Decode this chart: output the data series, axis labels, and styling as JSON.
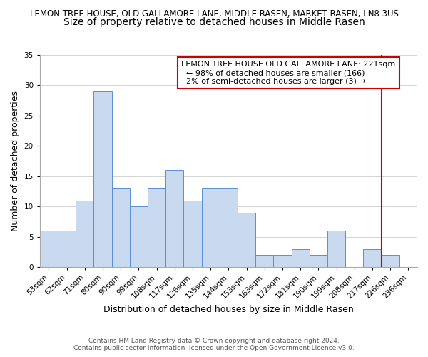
{
  "title_line1": "LEMON TREE HOUSE, OLD GALLAMORE LANE, MIDDLE RASEN, MARKET RASEN, LN8 3US",
  "title_line2": "Size of property relative to detached houses in Middle Rasen",
  "xlabel": "Distribution of detached houses by size in Middle Rasen",
  "ylabel": "Number of detached properties",
  "bin_labels": [
    "53sqm",
    "62sqm",
    "71sqm",
    "80sqm",
    "90sqm",
    "99sqm",
    "108sqm",
    "117sqm",
    "126sqm",
    "135sqm",
    "144sqm",
    "153sqm",
    "163sqm",
    "172sqm",
    "181sqm",
    "190sqm",
    "199sqm",
    "208sqm",
    "217sqm",
    "226sqm",
    "236sqm"
  ],
  "bar_heights": [
    6,
    6,
    11,
    29,
    13,
    10,
    13,
    16,
    11,
    13,
    13,
    9,
    2,
    2,
    3,
    2,
    6,
    0,
    3,
    2,
    0
  ],
  "bar_color": "#c9d9f0",
  "bar_edge_color": "#5b8fd4",
  "vline_x": 18.5,
  "vline_color": "#cc0000",
  "ylim": [
    0,
    35
  ],
  "yticks": [
    0,
    5,
    10,
    15,
    20,
    25,
    30,
    35
  ],
  "annotation_title": "LEMON TREE HOUSE OLD GALLAMORE LANE: 221sqm",
  "annotation_line1": "  ← 98% of detached houses are smaller (166)",
  "annotation_line2": "  2% of semi-detached houses are larger (3) →",
  "footer_line1": "Contains HM Land Registry data © Crown copyright and database right 2024.",
  "footer_line2": "Contains public sector information licensed under the Open Government Licence v3.0.",
  "title1_fontsize": 8.5,
  "title2_fontsize": 10,
  "axis_label_fontsize": 9,
  "tick_fontsize": 7.5,
  "annotation_fontsize": 8,
  "footer_fontsize": 6.5
}
